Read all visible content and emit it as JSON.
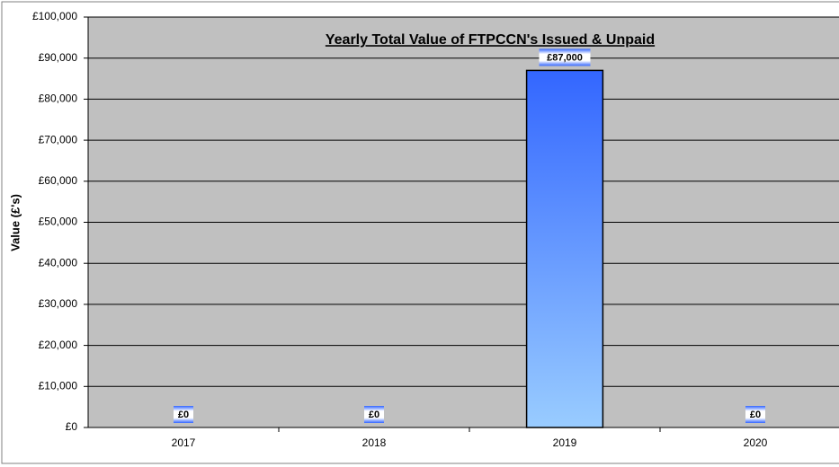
{
  "chart_data": {
    "type": "bar",
    "title": "Yearly Total Value of FTPCCN's Issued & Unpaid",
    "y_label": "Value (£'s)",
    "categories": [
      "2017",
      "2018",
      "2019",
      "2020"
    ],
    "values": [
      0,
      0,
      87000,
      0
    ],
    "value_labels": [
      "£0",
      "£0",
      "£87,000",
      "£0"
    ],
    "color": "#3366ff",
    "ylim": [
      0,
      100000
    ],
    "yticks": [
      {
        "value": 0,
        "label": "£0"
      },
      {
        "value": 10000,
        "label": "£10,000"
      },
      {
        "value": 20000,
        "label": "£20,000"
      },
      {
        "value": 30000,
        "label": "£30,000"
      },
      {
        "value": 40000,
        "label": "£40,000"
      },
      {
        "value": 50000,
        "label": "£50,000"
      },
      {
        "value": 60000,
        "label": "£60,000"
      },
      {
        "value": 70000,
        "label": "£70,000"
      },
      {
        "value": 80000,
        "label": "£80,000"
      },
      {
        "value": 90000,
        "label": "£90,000"
      },
      {
        "value": 100000,
        "label": "£100,000"
      }
    ],
    "grid": true
  }
}
